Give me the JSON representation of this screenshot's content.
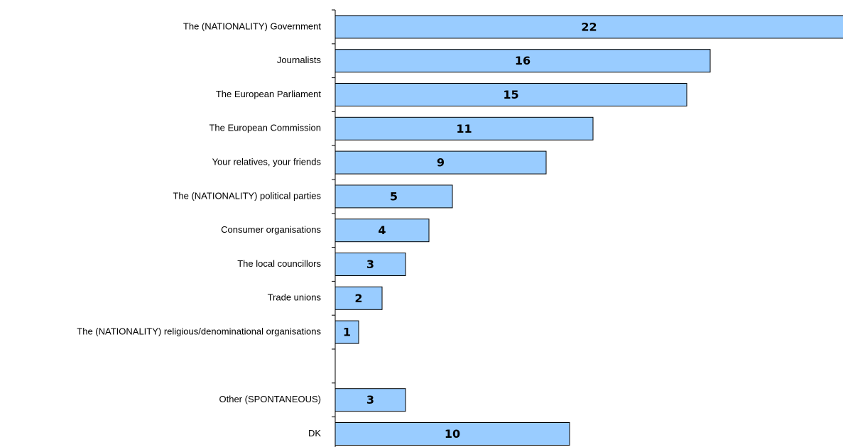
{
  "chart_data": {
    "type": "bar",
    "orientation": "horizontal",
    "categories": [
      "The (NATIONALITY) Government",
      "Journalists",
      "The European Parliament",
      "The European Commission",
      "Your relatives, your friends",
      "The (NATIONALITY) political parties",
      "Consumer organisations",
      "The local councillors",
      "Trade unions",
      "The (NATIONALITY) religious/denominational organisations",
      null,
      "Other (SPONTANEOUS)",
      "DK"
    ],
    "values": [
      22,
      16,
      15,
      11,
      9,
      5,
      4,
      3,
      2,
      1,
      null,
      3,
      10
    ],
    "color": "#99ccff"
  }
}
